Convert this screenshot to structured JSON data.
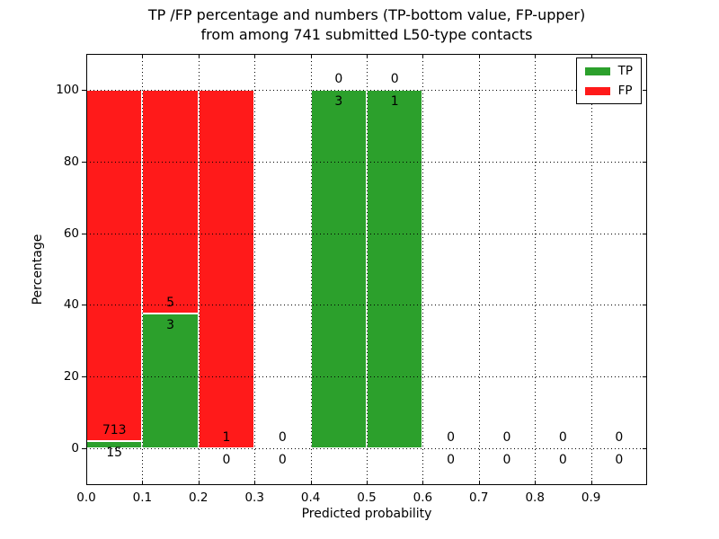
{
  "chart_data": {
    "type": "bar",
    "subtype": "stacked-percentage-histogram",
    "title_line1": "TP /FP percentage and numbers (TP-bottom value, FP-upper)",
    "title_line2": "from among 741 submitted L50-type contacts",
    "xlabel": "Predicted probability",
    "ylabel": "Percentage",
    "total_contacts": 741,
    "xlim": [
      0.0,
      1.0
    ],
    "ylim": [
      -10.3,
      110.0
    ],
    "x_tick_values": [
      0.0,
      0.1,
      0.2,
      0.3,
      0.4,
      0.5,
      0.6,
      0.7,
      0.8,
      0.9
    ],
    "x_tick_labels": [
      "0.0",
      "0.1",
      "0.2",
      "0.3",
      "0.4",
      "0.5",
      "0.6",
      "0.7",
      "0.8",
      "0.9"
    ],
    "y_tick_values": [
      0,
      20,
      40,
      60,
      80,
      100
    ],
    "y_tick_labels": [
      "0",
      "20",
      "40",
      "60",
      "80",
      "100"
    ],
    "grid": {
      "on": true,
      "style": "dotted",
      "color": "#000000"
    },
    "legend": {
      "position": "upper-right",
      "items": [
        {
          "label": "TP",
          "color": "#2ca02c"
        },
        {
          "label": "FP",
          "color": "#ff1a1a"
        }
      ]
    },
    "label_note": "FP count printed above TP-bar top, TP count printed below it",
    "bins": [
      {
        "range": [
          0.0,
          0.1
        ],
        "tp": 15,
        "fp": 713,
        "tp_pct": 2.06,
        "fp_pct": 97.94
      },
      {
        "range": [
          0.1,
          0.2
        ],
        "tp": 3,
        "fp": 5,
        "tp_pct": 37.5,
        "fp_pct": 62.5
      },
      {
        "range": [
          0.2,
          0.3
        ],
        "tp": 0,
        "fp": 1,
        "tp_pct": 0,
        "fp_pct": 100
      },
      {
        "range": [
          0.3,
          0.4
        ],
        "tp": 0,
        "fp": 0,
        "tp_pct": 0,
        "fp_pct": 0
      },
      {
        "range": [
          0.4,
          0.5
        ],
        "tp": 3,
        "fp": 0,
        "tp_pct": 100,
        "fp_pct": 0
      },
      {
        "range": [
          0.5,
          0.6
        ],
        "tp": 1,
        "fp": 0,
        "tp_pct": 100,
        "fp_pct": 0
      },
      {
        "range": [
          0.6,
          0.7
        ],
        "tp": 0,
        "fp": 0,
        "tp_pct": 0,
        "fp_pct": 0
      },
      {
        "range": [
          0.7,
          0.8
        ],
        "tp": 0,
        "fp": 0,
        "tp_pct": 0,
        "fp_pct": 0
      },
      {
        "range": [
          0.8,
          0.9
        ],
        "tp": 0,
        "fp": 0,
        "tp_pct": 0,
        "fp_pct": 0
      },
      {
        "range": [
          0.9,
          1.0
        ],
        "tp": 0,
        "fp": 0,
        "tp_pct": 0,
        "fp_pct": 0
      }
    ]
  }
}
